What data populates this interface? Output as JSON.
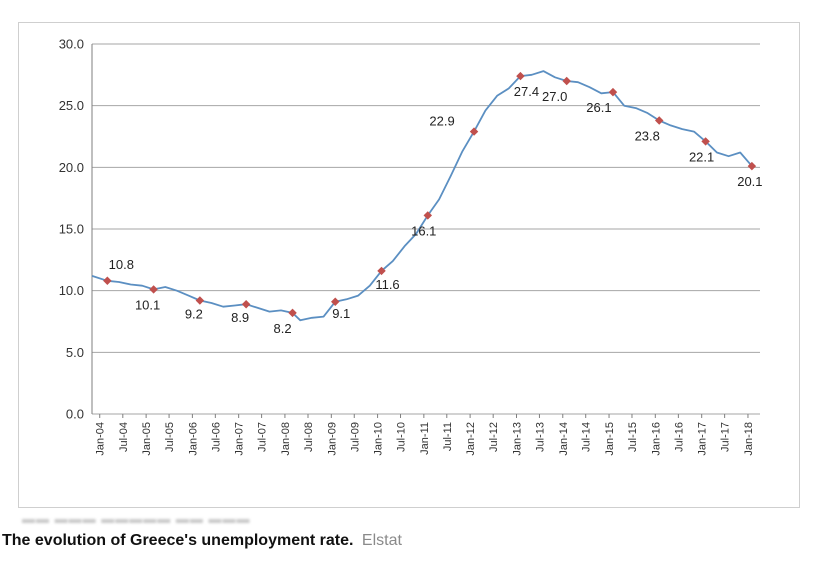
{
  "caption": {
    "text": "The evolution of Greece's unemployment rate.",
    "source": "Elstat"
  },
  "chart_data": {
    "type": "line",
    "title": "",
    "xlabel": "",
    "ylabel": "",
    "ylim": [
      0,
      30
    ],
    "grid": true,
    "line_color": "#5b8fc2",
    "marker_color": "#c0504d",
    "y_ticks": [
      "0.0",
      "5.0",
      "10.0",
      "15.0",
      "20.0",
      "25.0",
      "30.0"
    ],
    "x_tick_labels": [
      "Jan-04",
      "Jul-04",
      "Jan-05",
      "Jul-05",
      "Jan-06",
      "Jul-06",
      "Jan-07",
      "Jul-07",
      "Jan-08",
      "Jul-08",
      "Jan-09",
      "Jul-09",
      "Jan-10",
      "Jul-10",
      "Jan-11",
      "Jul-11",
      "Jan-12",
      "Jul-12",
      "Jan-13",
      "Jul-13",
      "Jan-14",
      "Jul-14",
      "Jan-15",
      "Jul-15",
      "Jan-16",
      "Jul-16",
      "Jan-17",
      "Jul-17",
      "Jan-18"
    ],
    "series": [
      {
        "x": [
          "2003-11",
          "2004-03",
          "2004-06",
          "2004-09",
          "2004-12",
          "2005-03",
          "2005-06",
          "2005-09",
          "2005-12",
          "2006-03",
          "2006-06",
          "2006-09",
          "2006-12",
          "2007-03",
          "2007-06",
          "2007-09",
          "2007-12",
          "2008-03",
          "2008-05",
          "2008-08",
          "2008-11",
          "2009-02",
          "2009-05",
          "2009-08",
          "2009-11",
          "2010-02",
          "2010-05",
          "2010-08",
          "2010-11",
          "2011-02",
          "2011-05",
          "2011-08",
          "2011-11",
          "2012-02",
          "2012-05",
          "2012-08",
          "2012-11",
          "2013-02",
          "2013-05",
          "2013-08",
          "2013-11",
          "2014-02",
          "2014-05",
          "2014-08",
          "2014-11",
          "2015-02",
          "2015-05",
          "2015-08",
          "2015-11",
          "2016-02",
          "2016-05",
          "2016-08",
          "2016-11",
          "2017-02",
          "2017-05",
          "2017-08",
          "2017-11",
          "2018-02"
        ],
        "values": [
          11.2,
          10.8,
          10.7,
          10.5,
          10.4,
          10.1,
          10.3,
          10.0,
          9.6,
          9.2,
          9.0,
          8.7,
          8.8,
          8.9,
          8.6,
          8.3,
          8.4,
          8.2,
          7.6,
          7.8,
          7.9,
          9.1,
          9.3,
          9.6,
          10.4,
          11.6,
          12.4,
          13.6,
          14.6,
          16.1,
          17.4,
          19.3,
          21.3,
          22.9,
          24.6,
          25.8,
          26.4,
          27.4,
          27.5,
          27.8,
          27.3,
          27.0,
          26.9,
          26.5,
          26.0,
          26.1,
          25.0,
          24.8,
          24.4,
          23.8,
          23.4,
          23.1,
          22.9,
          22.1,
          21.2,
          20.9,
          21.2,
          20.1
        ]
      }
    ],
    "markers": [
      {
        "x": "2004-03",
        "value": 10.8,
        "label": "10.8"
      },
      {
        "x": "2005-03",
        "value": 10.1,
        "label": "10.1"
      },
      {
        "x": "2006-03",
        "value": 9.2,
        "label": "9.2"
      },
      {
        "x": "2007-03",
        "value": 8.9,
        "label": "8.9"
      },
      {
        "x": "2008-03",
        "value": 8.2,
        "label": "8.2"
      },
      {
        "x": "2009-02",
        "value": 9.1,
        "label": "9.1"
      },
      {
        "x": "2010-02",
        "value": 11.6,
        "label": "11.6"
      },
      {
        "x": "2011-02",
        "value": 16.1,
        "label": "16.1"
      },
      {
        "x": "2012-02",
        "value": 22.9,
        "label": "22.9"
      },
      {
        "x": "2013-02",
        "value": 27.4,
        "label": "27.4"
      },
      {
        "x": "2014-02",
        "value": 27.0,
        "label": "27.0"
      },
      {
        "x": "2015-02",
        "value": 26.1,
        "label": "26.1"
      },
      {
        "x": "2016-02",
        "value": 23.8,
        "label": "23.8"
      },
      {
        "x": "2017-02",
        "value": 22.1,
        "label": "22.1"
      },
      {
        "x": "2018-02",
        "value": 20.1,
        "label": "20.1"
      }
    ]
  }
}
